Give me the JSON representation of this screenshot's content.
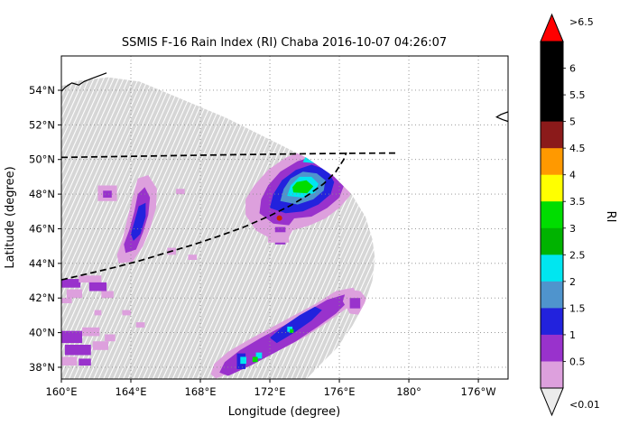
{
  "chart_data": {
    "type": "heatmap",
    "title": "SSMIS F-16 Rain Index (RI) Chaba 2016-10-07 04:26:07",
    "xlabel": "Longitude (degree)",
    "ylabel": "Latitude (degree)",
    "grid": "dotted",
    "legend_position": "right-colorbar",
    "lon_range": [
      160,
      185.71
    ],
    "lat_range": [
      37.32,
      55.98
    ],
    "x_ticks": [
      {
        "value": 160,
        "label": "160°E"
      },
      {
        "value": 164,
        "label": "164°E"
      },
      {
        "value": 168,
        "label": "168°E"
      },
      {
        "value": 172,
        "label": "172°E"
      },
      {
        "value": 176,
        "label": "176°E"
      },
      {
        "value": 180,
        "label": "180°"
      },
      {
        "value": 184,
        "label": "176°W"
      }
    ],
    "y_ticks": [
      {
        "value": 38,
        "label": "38°N"
      },
      {
        "value": 40,
        "label": "40°N"
      },
      {
        "value": 42,
        "label": "42°N"
      },
      {
        "value": 44,
        "label": "44°N"
      },
      {
        "value": 46,
        "label": "46°N"
      },
      {
        "value": 48,
        "label": "48°N"
      },
      {
        "value": 50,
        "label": "50°N"
      },
      {
        "value": 52,
        "label": "52°N"
      },
      {
        "value": 54,
        "label": "54°N"
      }
    ],
    "swath_color": "#d6d6d6",
    "palette": {
      "p0": "#dda0dd",
      "p1": "#9932cc",
      "bl": "#2222dd",
      "sb": "#4f94cd",
      "cy": "#00e6f0",
      "gr": "#00dd00"
    },
    "swath_boundary": [
      [
        160,
        37.32
      ],
      [
        160,
        54.25
      ],
      [
        161.0,
        54.55
      ],
      [
        162.7,
        54.75
      ],
      [
        164.5,
        54.5
      ],
      [
        166.9,
        53.5
      ],
      [
        169.5,
        52.4
      ],
      [
        172.1,
        51.1
      ],
      [
        174.1,
        50.1
      ],
      [
        175.7,
        49.0
      ],
      [
        176.7,
        48.0
      ],
      [
        177.5,
        46.7
      ],
      [
        177.9,
        45.4
      ],
      [
        178.05,
        44.3
      ],
      [
        177.9,
        43.0
      ],
      [
        177.45,
        41.7
      ],
      [
        176.75,
        40.4
      ],
      [
        175.85,
        39.1
      ],
      [
        174.85,
        38.1
      ],
      [
        174.1,
        37.32
      ]
    ],
    "patches": [
      {
        "level": "0.01-0.5",
        "key": "p0",
        "points": [
          [
            170.6,
            46.8
          ],
          [
            171.2,
            45.9
          ],
          [
            172.1,
            45.4
          ],
          [
            172.9,
            45.2
          ],
          [
            173.3,
            45.9
          ],
          [
            174.3,
            46.2
          ],
          [
            175.2,
            46.6
          ],
          [
            176.0,
            47.2
          ],
          [
            176.6,
            47.9
          ],
          [
            176.8,
            48.8
          ],
          [
            176.6,
            49.7
          ],
          [
            176.0,
            50.3
          ],
          [
            175.0,
            50.5
          ],
          [
            173.9,
            50.5
          ],
          [
            172.9,
            50.1
          ],
          [
            171.9,
            49.4
          ],
          [
            171.1,
            48.5
          ],
          [
            170.6,
            47.7
          ]
        ]
      },
      {
        "level": "0.5-1",
        "key": "p1",
        "points": [
          [
            171.4,
            46.9
          ],
          [
            172.2,
            46.3
          ],
          [
            173.1,
            46.2
          ],
          [
            173.4,
            46.6
          ],
          [
            174.4,
            46.7
          ],
          [
            175.3,
            47.2
          ],
          [
            176.0,
            47.8
          ],
          [
            176.3,
            48.6
          ],
          [
            176.2,
            49.4
          ],
          [
            175.6,
            50.0
          ],
          [
            174.6,
            50.2
          ],
          [
            173.6,
            49.9
          ],
          [
            172.6,
            49.3
          ],
          [
            171.9,
            48.5
          ],
          [
            171.5,
            47.7
          ]
        ]
      },
      {
        "level": "1-1.5",
        "key": "bl",
        "points": [
          [
            172.0,
            47.2
          ],
          [
            172.9,
            46.9
          ],
          [
            173.9,
            47.0
          ],
          [
            174.8,
            47.4
          ],
          [
            175.5,
            48.0
          ],
          [
            175.7,
            48.7
          ],
          [
            175.3,
            49.4
          ],
          [
            174.4,
            49.7
          ],
          [
            173.5,
            49.4
          ],
          [
            172.7,
            48.8
          ],
          [
            172.2,
            48.0
          ]
        ]
      },
      {
        "level": "1.5-2",
        "key": "sb",
        "points": [
          [
            172.6,
            47.6
          ],
          [
            173.6,
            47.4
          ],
          [
            174.5,
            47.7
          ],
          [
            175.1,
            48.2
          ],
          [
            175.2,
            48.8
          ],
          [
            174.7,
            49.2
          ],
          [
            173.9,
            49.3
          ],
          [
            173.2,
            48.9
          ],
          [
            172.8,
            48.3
          ]
        ]
      },
      {
        "level": "2-2.5",
        "key": "cy",
        "points": [
          [
            173.0,
            47.9
          ],
          [
            173.9,
            47.8
          ],
          [
            174.6,
            48.1
          ],
          [
            174.8,
            48.6
          ],
          [
            174.4,
            49.0
          ],
          [
            173.7,
            49.0
          ],
          [
            173.2,
            48.5
          ]
        ]
      },
      {
        "level": "2.5-3.5",
        "key": "gr",
        "points": [
          [
            173.35,
            48.1
          ],
          [
            174.15,
            48.05
          ],
          [
            174.5,
            48.45
          ],
          [
            174.1,
            48.8
          ],
          [
            173.55,
            48.7
          ],
          [
            173.3,
            48.4
          ]
        ]
      },
      {
        "level": "2-2.5",
        "key": "cy",
        "points": [
          [
            173.9,
            49.85
          ],
          [
            175.5,
            49.7
          ],
          [
            176.05,
            49.95
          ],
          [
            175.75,
            50.3
          ],
          [
            174.15,
            50.35
          ]
        ]
      },
      {
        "level": "2.5-3.5",
        "key": "gr",
        "points": [
          [
            174.35,
            49.95
          ],
          [
            175.45,
            49.85
          ],
          [
            175.7,
            50.05
          ],
          [
            174.55,
            50.2
          ]
        ]
      },
      {
        "level": "0.01-0.5",
        "key": "p0",
        "points": [
          [
            163.3,
            44.0
          ],
          [
            164.1,
            44.1
          ],
          [
            164.7,
            45.0
          ],
          [
            165.1,
            46.0
          ],
          [
            165.45,
            47.2
          ],
          [
            165.5,
            48.3
          ],
          [
            165.0,
            49.1
          ],
          [
            164.4,
            48.9
          ],
          [
            164.1,
            47.8
          ],
          [
            163.8,
            46.6
          ],
          [
            163.5,
            45.3
          ],
          [
            163.2,
            44.5
          ]
        ]
      },
      {
        "level": "0.5-1",
        "key": "p1",
        "points": [
          [
            163.7,
            44.6
          ],
          [
            164.3,
            44.8
          ],
          [
            164.7,
            45.8
          ],
          [
            165.0,
            46.8
          ],
          [
            165.1,
            47.8
          ],
          [
            164.8,
            48.4
          ],
          [
            164.4,
            48.0
          ],
          [
            164.2,
            47.0
          ],
          [
            163.9,
            45.9
          ],
          [
            163.6,
            45.1
          ]
        ]
      },
      {
        "level": "1-1.5",
        "key": "bl",
        "points": [
          [
            164.15,
            45.3
          ],
          [
            164.55,
            45.7
          ],
          [
            164.85,
            46.7
          ],
          [
            164.85,
            47.5
          ],
          [
            164.45,
            47.3
          ],
          [
            164.2,
            46.4
          ],
          [
            164.0,
            45.7
          ]
        ]
      },
      {
        "level": "0.01-0.5",
        "key": "p0",
        "points": [
          [
            168.9,
            37.35
          ],
          [
            170.2,
            37.9
          ],
          [
            171.5,
            38.5
          ],
          [
            172.8,
            39.1
          ],
          [
            174.1,
            39.8
          ],
          [
            175.3,
            40.6
          ],
          [
            176.4,
            41.4
          ],
          [
            177.1,
            42.1
          ],
          [
            176.8,
            42.6
          ],
          [
            175.8,
            42.4
          ],
          [
            174.7,
            41.7
          ],
          [
            173.4,
            41.0
          ],
          [
            172.1,
            40.3
          ],
          [
            170.8,
            39.6
          ],
          [
            169.6,
            38.9
          ],
          [
            168.8,
            38.2
          ],
          [
            168.6,
            37.6
          ]
        ]
      },
      {
        "level": "0.5-1",
        "key": "p1",
        "points": [
          [
            169.6,
            37.5
          ],
          [
            170.9,
            38.1
          ],
          [
            172.2,
            38.8
          ],
          [
            173.5,
            39.5
          ],
          [
            174.7,
            40.3
          ],
          [
            175.8,
            41.1
          ],
          [
            176.6,
            41.9
          ],
          [
            176.3,
            42.2
          ],
          [
            175.3,
            41.9
          ],
          [
            174.1,
            41.2
          ],
          [
            172.8,
            40.4
          ],
          [
            171.5,
            39.7
          ],
          [
            170.3,
            39.0
          ],
          [
            169.4,
            38.3
          ],
          [
            169.1,
            37.7
          ]
        ]
      },
      {
        "level": "1-1.5",
        "key": "bl",
        "points": [
          [
            172.4,
            39.4
          ],
          [
            173.4,
            40.0
          ],
          [
            174.4,
            40.7
          ],
          [
            175.0,
            41.3
          ],
          [
            174.6,
            41.5
          ],
          [
            173.7,
            41.0
          ],
          [
            172.7,
            40.3
          ],
          [
            172.0,
            39.7
          ]
        ]
      },
      {
        "level": "0.01-0.5",
        "key": "p0",
        "points": [
          [
            176.4,
            42.5
          ],
          [
            177.2,
            42.4
          ],
          [
            177.7,
            41.8
          ],
          [
            177.4,
            41.0
          ],
          [
            176.6,
            41.1
          ],
          [
            176.2,
            41.8
          ]
        ]
      }
    ],
    "cells": [
      [
        172.3,
        46.1,
        0.6,
        1.0,
        "p1"
      ],
      [
        171.9,
        45.8,
        1.2,
        0.6,
        "p0"
      ],
      [
        162.1,
        48.5,
        1.1,
        0.9,
        "p0"
      ],
      [
        162.4,
        48.2,
        0.5,
        0.4,
        "p1"
      ],
      [
        160.0,
        43.1,
        1.1,
        0.5,
        "p1"
      ],
      [
        161.0,
        43.3,
        1.3,
        0.4,
        "p0"
      ],
      [
        160.3,
        42.5,
        0.9,
        0.5,
        "p0"
      ],
      [
        161.6,
        42.9,
        1.0,
        0.5,
        "p1"
      ],
      [
        162.3,
        42.4,
        0.7,
        0.4,
        "p0"
      ],
      [
        160.0,
        42.0,
        0.6,
        0.3,
        "p0"
      ],
      [
        160.0,
        40.1,
        1.2,
        0.7,
        "p1"
      ],
      [
        161.2,
        40.3,
        1.0,
        0.5,
        "p0"
      ],
      [
        160.2,
        39.3,
        1.5,
        0.6,
        "p1"
      ],
      [
        161.8,
        39.5,
        0.9,
        0.5,
        "p0"
      ],
      [
        162.5,
        39.9,
        0.6,
        0.4,
        "p0"
      ],
      [
        160.0,
        38.6,
        0.9,
        0.5,
        "p0"
      ],
      [
        161.0,
        38.5,
        0.7,
        0.4,
        "p1"
      ],
      [
        163.5,
        41.3,
        0.5,
        0.3,
        "p0"
      ],
      [
        164.3,
        40.6,
        0.5,
        0.3,
        "p0"
      ],
      [
        166.1,
        44.9,
        0.5,
        0.4,
        "p0"
      ],
      [
        167.3,
        44.5,
        0.5,
        0.3,
        "p0"
      ],
      [
        166.6,
        48.3,
        0.5,
        0.3,
        "p0"
      ],
      [
        161.9,
        41.3,
        0.4,
        0.3,
        "p0"
      ],
      [
        170.1,
        38.8,
        0.5,
        0.9,
        "bl"
      ],
      [
        170.3,
        38.6,
        0.35,
        0.4,
        "cy"
      ],
      [
        171.2,
        38.85,
        0.35,
        0.35,
        "cy"
      ],
      [
        171.0,
        38.6,
        0.3,
        0.3,
        "gr"
      ],
      [
        173.0,
        40.35,
        0.3,
        0.3,
        "cy"
      ],
      [
        173.15,
        40.2,
        0.22,
        0.22,
        "gr"
      ],
      [
        176.6,
        42.0,
        0.6,
        0.6,
        "p1"
      ]
    ],
    "tracks": [
      {
        "name": "dashed-track-north",
        "points": [
          [
            160,
            50.12
          ],
          [
            165,
            50.2
          ],
          [
            170,
            50.28
          ],
          [
            174,
            50.33
          ],
          [
            177,
            50.36
          ],
          [
            179.35,
            50.37
          ]
        ]
      },
      {
        "name": "dashed-track-storm",
        "points": [
          [
            160,
            43.05
          ],
          [
            161.5,
            43.4
          ],
          [
            163,
            43.75
          ],
          [
            164.5,
            44.15
          ],
          [
            166,
            44.6
          ],
          [
            167.5,
            45.05
          ],
          [
            169,
            45.55
          ],
          [
            170.5,
            46.1
          ],
          [
            172,
            46.75
          ],
          [
            173.2,
            47.35
          ],
          [
            174.2,
            47.95
          ],
          [
            175.1,
            48.6
          ],
          [
            175.8,
            49.3
          ],
          [
            176.25,
            50.0
          ],
          [
            176.4,
            50.4
          ]
        ]
      }
    ],
    "storm_center": {
      "lon": 172.55,
      "lat": 46.62,
      "color": "#cc2200"
    },
    "coastlines": [
      [
        [
          160.02,
          53.95
        ],
        [
          160.25,
          54.2
        ],
        [
          160.6,
          54.42
        ],
        [
          161.0,
          54.3
        ],
        [
          161.3,
          54.5
        ],
        [
          161.75,
          54.68
        ],
        [
          162.2,
          54.85
        ],
        [
          162.6,
          55.0
        ]
      ],
      [
        [
          185.7,
          52.75
        ],
        [
          185.3,
          52.6
        ],
        [
          185.05,
          52.45
        ],
        [
          185.4,
          52.3
        ],
        [
          185.7,
          52.2
        ]
      ]
    ],
    "colorbar": {
      "label": "RI",
      "over_label": ">6.5",
      "under_label": "<0.01",
      "over_color": "#ff0000",
      "under_color": "#ececec",
      "segments": [
        {
          "range": "6-6.5",
          "color": "#000000",
          "label": "6"
        },
        {
          "range": "5.5-6",
          "color": "#000000",
          "label": "5.5"
        },
        {
          "range": "5-5.5",
          "color": "#000000",
          "label": "5"
        },
        {
          "range": "4.5-5",
          "color": "#8b1a1a",
          "label": "4.5"
        },
        {
          "range": "4-4.5",
          "color": "#ff9900",
          "label": "4"
        },
        {
          "range": "3.5-4",
          "color": "#ffff00",
          "label": "3.5"
        },
        {
          "range": "3-3.5",
          "color": "#00dd00",
          "label": "3"
        },
        {
          "range": "2.5-3",
          "color": "#00b300",
          "label": "2.5"
        },
        {
          "range": "2-2.5",
          "color": "#00e6f0",
          "label": "2"
        },
        {
          "range": "1.5-2",
          "color": "#4f94cd",
          "label": "1.5"
        },
        {
          "range": "1-1.5",
          "color": "#2222dd",
          "label": "1"
        },
        {
          "range": "0.5-1",
          "color": "#9932cc",
          "label": "0.5"
        },
        {
          "range": "0.01-0.5",
          "color": "#dda0dd",
          "label": null
        }
      ]
    }
  }
}
